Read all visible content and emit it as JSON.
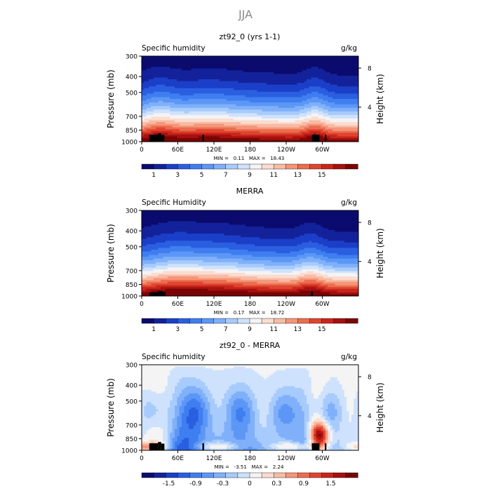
{
  "page": {
    "title": "JJA"
  },
  "chart_data": [
    {
      "type": "heatmap",
      "title": "zt92_0 (yrs 1-1)",
      "left_label": "Specific humidity",
      "right_label": "g/kg",
      "xlabel": "",
      "ylabel": "Pressure (mb)",
      "y2label": "Height (km)",
      "xticks": [
        "0",
        "60E",
        "120E",
        "180",
        "120W",
        "60W"
      ],
      "yticks": [
        "300",
        "400",
        "500",
        "700",
        "850",
        "1000"
      ],
      "ylim": [
        1000,
        300
      ],
      "y2ticks": [
        "8",
        "4"
      ],
      "stats": "MIN =   0.11   MAX =   18.43",
      "min": 0.11,
      "max": 18.43,
      "colorbar_ticks": [
        "1",
        "3",
        "5",
        "7",
        "9",
        "11",
        "13",
        "15"
      ],
      "colorbar_colors": [
        "#0b0b6e",
        "#13229b",
        "#1b3fc8",
        "#2a5fe0",
        "#3f7ef0",
        "#5d97f6",
        "#80b0fa",
        "#a7cbfc",
        "#cfe2fd",
        "#f4f4f4",
        "#fbdcd0",
        "#f8bba4",
        "#f49679",
        "#ec6d4f",
        "#df4530",
        "#c8261b",
        "#a61010",
        "#7a0404"
      ],
      "surface_mask": [
        [
          0.035,
          0.075,
          905
        ],
        [
          0.075,
          0.09,
          890
        ],
        [
          0.09,
          0.105,
          910
        ],
        [
          0.28,
          0.288,
          905
        ],
        [
          0.785,
          0.82,
          905
        ],
        [
          0.845,
          0.852,
          905
        ]
      ]
    },
    {
      "type": "heatmap",
      "title": "MERRA",
      "left_label": "Specific Humidity",
      "right_label": "g/kg",
      "xlabel": "",
      "ylabel": "Pressure (mb)",
      "y2label": "Height (km)",
      "xticks": [
        "0",
        "60E",
        "120E",
        "180",
        "120W",
        "60W"
      ],
      "yticks": [
        "300",
        "400",
        "500",
        "700",
        "850",
        "1000"
      ],
      "ylim": [
        1000,
        300
      ],
      "y2ticks": [
        "8",
        "4"
      ],
      "stats": "MIN =   0.17   MAX =   18.72",
      "min": 0.17,
      "max": 18.72,
      "colorbar_ticks": [
        "1",
        "3",
        "5",
        "7",
        "9",
        "11",
        "13",
        "15"
      ],
      "colorbar_colors": [
        "#0b0b6e",
        "#13229b",
        "#1b3fc8",
        "#2a5fe0",
        "#3f7ef0",
        "#5d97f6",
        "#80b0fa",
        "#a7cbfc",
        "#cfe2fd",
        "#f4f4f4",
        "#fbdcd0",
        "#f8bba4",
        "#f49679",
        "#ec6d4f",
        "#df4530",
        "#c8261b",
        "#a61010",
        "#7a0404"
      ],
      "surface_mask": [
        [
          0.035,
          0.075,
          950
        ],
        [
          0.075,
          0.095,
          930
        ],
        [
          0.095,
          0.11,
          945
        ],
        [
          0.78,
          0.79,
          940
        ]
      ]
    },
    {
      "type": "heatmap",
      "title": "zt92_0 - MERRA",
      "left_label": "Specific humidity",
      "right_label": "g/kg",
      "xlabel": "",
      "ylabel": "Pressure (mb)",
      "y2label": "Height (km)",
      "xticks": [
        "0",
        "60E",
        "120E",
        "180",
        "120W",
        "60W"
      ],
      "yticks": [
        "300",
        "400",
        "500",
        "700",
        "850",
        "1000"
      ],
      "ylim": [
        1000,
        300
      ],
      "y2ticks": [
        "8",
        "4"
      ],
      "stats": "MIN =   -3.51   MAX =   2.24",
      "min": -3.51,
      "max": 2.24,
      "colorbar_ticks": [
        "-1.5",
        "-0.9",
        "-0.3",
        "0",
        "0.3",
        "0.9",
        "1.5"
      ],
      "colorbar_colors": [
        "#0b0b6e",
        "#13229b",
        "#1b3fc8",
        "#2a5fe0",
        "#3f7ef0",
        "#5d97f6",
        "#80b0fa",
        "#a7cbfc",
        "#cfe2fd",
        "#f4f4f4",
        "#fbdcd0",
        "#f8bba4",
        "#f49679",
        "#ec6d4f",
        "#df4530",
        "#c8261b",
        "#a61010",
        "#7a0404"
      ],
      "surface_mask": [
        [
          0.035,
          0.075,
          905
        ],
        [
          0.075,
          0.09,
          890
        ],
        [
          0.09,
          0.105,
          910
        ],
        [
          0.28,
          0.288,
          905
        ],
        [
          0.785,
          0.82,
          905
        ],
        [
          0.845,
          0.852,
          905
        ]
      ]
    }
  ]
}
